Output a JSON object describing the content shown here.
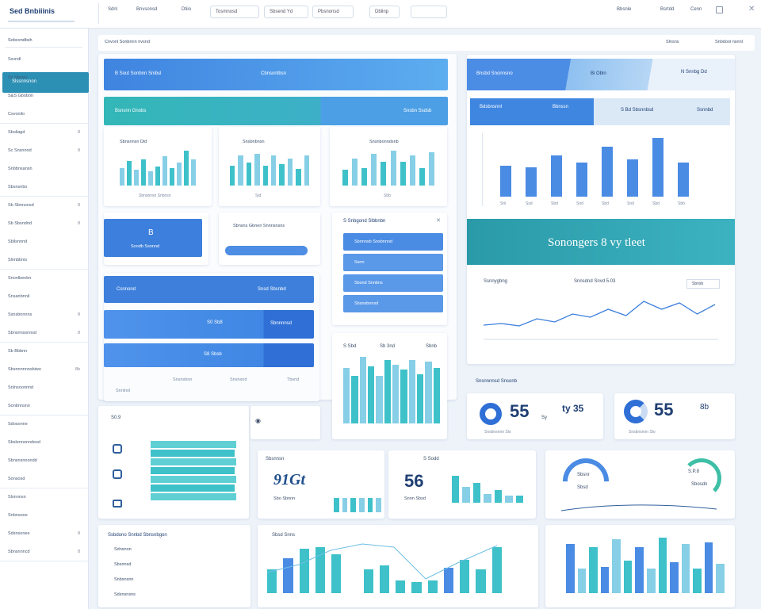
{
  "topbar": {
    "brand": "Sed Bnbiiinis",
    "tabs": [
      "Sdnl",
      "Bnvsonsd",
      "Dtiio"
    ],
    "fields": [
      "Tosmnosd",
      "Sbsend Yd",
      "Pbsnonsd",
      "Dblinp"
    ],
    "right_items": [
      "Bbsnle",
      "Bsrtdd",
      "Cenn"
    ]
  },
  "toolbar": {
    "breadcrumb": "Cnvonl Sonbnnn nvsnd",
    "right_a": "Slnsns",
    "right_b": "Snbdooi nsnnl"
  },
  "sidebar": {
    "search": "Sobcondbsh",
    "active": "Slssnnsnon",
    "items": [
      {
        "label": "Ssvndl"
      },
      {
        "label": "Sy Sboon"
      },
      {
        "label": "S&S Gbobon"
      },
      {
        "label": "Csvonilo"
      },
      {
        "label": "Sboliagd",
        "count": "8"
      },
      {
        "label": "Sc Snsnnod",
        "count": "8"
      },
      {
        "label": "Snbbnsansn"
      },
      {
        "label": "Sbsnsnbo"
      },
      {
        "label": "Sb Sbnnsnsd",
        "count": "8"
      },
      {
        "label": "Sb Sbsndnd",
        "count": "8"
      },
      {
        "label": "Sbllsnnnd"
      },
      {
        "label": "Slnnbbnis"
      },
      {
        "label": "Snonlbenbn"
      },
      {
        "label": "Snsanbnnil"
      },
      {
        "label": "Ssnsbnnnns",
        "count": "8"
      },
      {
        "label": "Sbnsnnssnnsd",
        "count": "8"
      },
      {
        "label": "Sb Bbbnn"
      },
      {
        "label": "Sbsnnnnnnsbiwo",
        "count": "8b"
      },
      {
        "label": "Snlnsoonnnd"
      },
      {
        "label": "Sonbnnsno"
      },
      {
        "label": "Sdosonne"
      },
      {
        "label": "Sbslennonndesd"
      },
      {
        "label": "Sbnsnsnnondd"
      },
      {
        "label": "Sonsosd"
      },
      {
        "label": "Slsnnnsn"
      },
      {
        "label": "Snbnsooe"
      },
      {
        "label": "Sdsnsonee",
        "count": "8"
      },
      {
        "label": "Sbnsnnncd",
        "count": "8"
      }
    ]
  },
  "banners": {
    "b1_left": "B Sout Sonbnn Snibsl",
    "b1_right": "Cbnsontbsn",
    "b2_left": "Bsnsnn Gnobs",
    "b2_right": "Snsbn Ssdsb",
    "right_header_left": "Bnsbd Snonnsno",
    "right_header_mid": "Bi Obln",
    "right_header_right": "N Snnbg Dd"
  },
  "minicharts": {
    "m1": {
      "title": "Sbnsnnsn Did",
      "foot": "Sbnsbnsn Snbnsn"
    },
    "m2": {
      "title": "Snsbnbnsn",
      "foot": "Sid"
    },
    "m3": {
      "title": "Snsnbonndsnb",
      "foot": "Sbb"
    }
  },
  "bignum": {
    "b": "B",
    "label": "Soodb Ssnnnd",
    "btn": "Sbnsns Gbnen Snnnsnsns"
  },
  "list_card": {
    "title": "S Snbgond Slbbnbn",
    "rows": [
      "Sbnnnsb Snsbnnnd",
      "Ssnn",
      "Sbsnd Snnbns",
      "Sbsnsbnnsd"
    ]
  },
  "rows_card": {
    "r1_left": "Csnnond",
    "r1_right": "Snsd Sbsnbd",
    "r2_mid": "S0 Sb8",
    "r2_right": "Sbnnnnsd",
    "r3_mid": "S8 Sbsb",
    "foot": [
      "Snnlnnl",
      "Snsnsbnn",
      "Snsnsnd",
      "Tbsnd"
    ]
  },
  "right_kpi": {
    "tab1": "Bdsbnsnnl",
    "tab2": "Bbnssn",
    "tab3": "S Bd Sbsnnbsd",
    "tab4": "Ssnnbd"
  },
  "big_banner": "Sonongers 8 vy tleet",
  "line_chart": {
    "title": "Ssnnygbng",
    "sub": "Snnsdnd Snvd 5.03",
    "legend": "Sbnsb"
  },
  "kpis": {
    "header": "Snsnnnnsd Snsonb",
    "k1": "55",
    "k1_side": "ty 35",
    "k1_unit": "Sy",
    "k2": "55",
    "k2_side": "8b",
    "k_foot": "Snsbnsnnn Slo"
  },
  "lower": {
    "c1_title": "Sbsnnsn",
    "c1_big": "91Gt",
    "c1_sub": "Sbo Sbnnn",
    "c2_title": "S Sodd",
    "c2_big": "56",
    "c2_sub": "Snnn Sbsd",
    "gauge1": "Sbsnr",
    "gauge1_sub": "Sbsd",
    "gauge2": "S.P.8",
    "gauge2_sub": "Sbosdn",
    "tbl_title": "Ssbdono Snnbd Sbnsnbgon",
    "tbl_rows": [
      "Sdnsnon",
      "Sbsnnsd",
      "Snbsnsnn",
      "Sdsnsnsns"
    ],
    "sparkhead": "Sbsd Snns"
  },
  "tall_bar": {
    "t1": "S Sbd",
    "t2": "Sb 3nd",
    "t3": "Sbnb"
  },
  "chart_data": [
    {
      "type": "bar",
      "categories": [
        "Snl",
        "Ssd",
        "Sbd",
        "Snd",
        "Sbd",
        "Snd",
        "Sbd",
        "Sbb"
      ],
      "values": [
        42,
        40,
        56,
        46,
        68,
        51,
        80,
        46
      ]
    },
    {
      "type": "line",
      "values": [
        14,
        16,
        13,
        22,
        18,
        28,
        24,
        34,
        26,
        44,
        34,
        42,
        28,
        40
      ]
    }
  ]
}
